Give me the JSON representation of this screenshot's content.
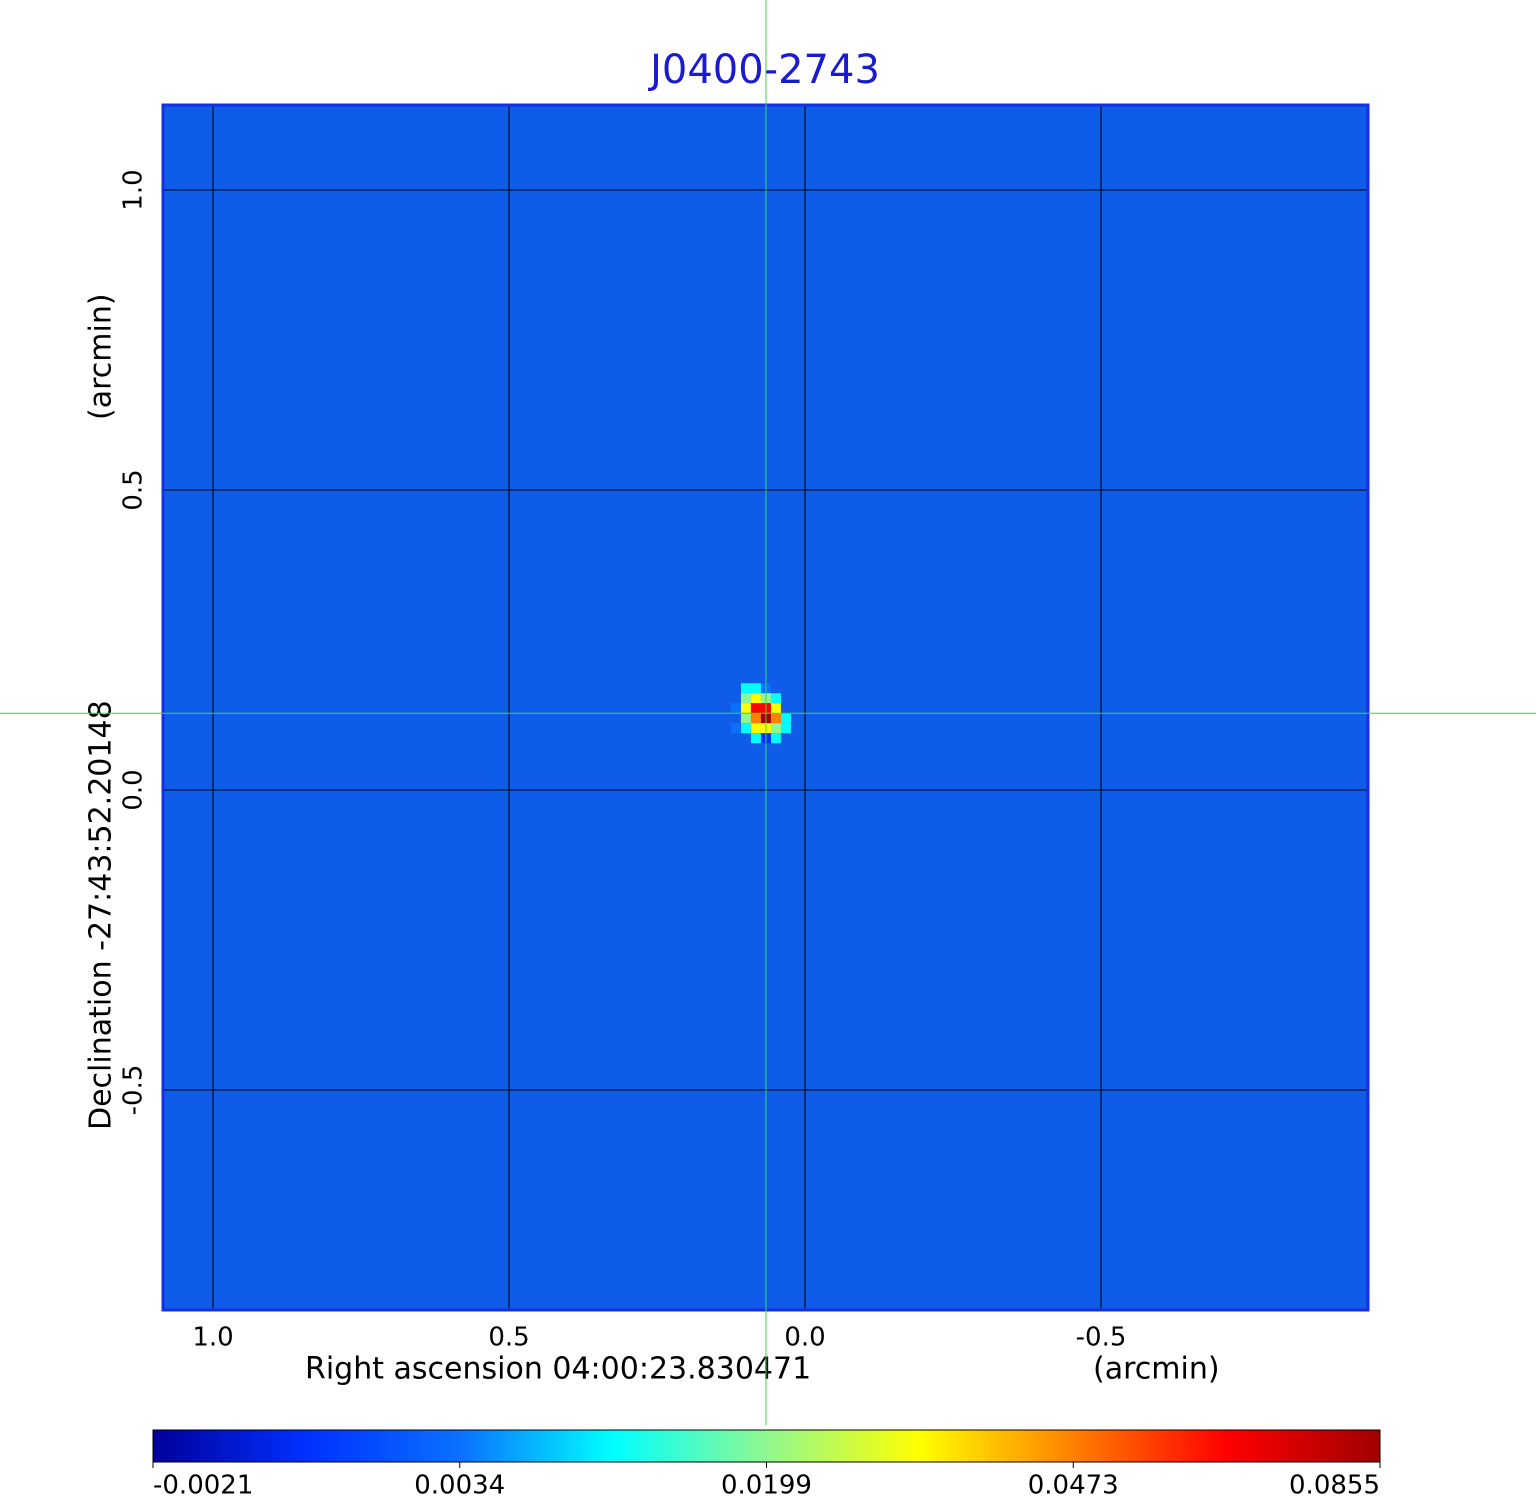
{
  "chart_data": {
    "type": "image",
    "title": "J0400-2743",
    "xlabel": "Right ascension  04:00:23.830471",
    "xunit": "(arcmin)",
    "ylabel": "Declination  -27:43:52.20148",
    "yunit": "(arcmin)",
    "xlim": [
      1.0845,
      -0.951
    ],
    "xticks": [
      {
        "value": 1,
        "label": "1.0"
      },
      0.5,
      {
        "value": 0,
        "label": "0.0"
      },
      -0.5
    ],
    "ylim": [
      -0.8667,
      1.1417
    ],
    "yticks": [
      {
        "value": 1,
        "label": "1.0"
      },
      0.5,
      {
        "value": 0,
        "label": "0.0"
      },
      -0.5
    ],
    "grid": true,
    "crosshair": {
      "x": 0.066,
      "y": 0.128
    },
    "colorbar_ticks": [
      -0.0021,
      0.0034,
      0.0199,
      0.0473,
      0.0855
    ],
    "colormap": [
      "#00009a",
      "#0030ff",
      "#0a70ff",
      "#00ffff",
      "#90f890",
      "#ffff00",
      "#ff8000",
      "#ff0000",
      "#a00000"
    ]
  }
}
